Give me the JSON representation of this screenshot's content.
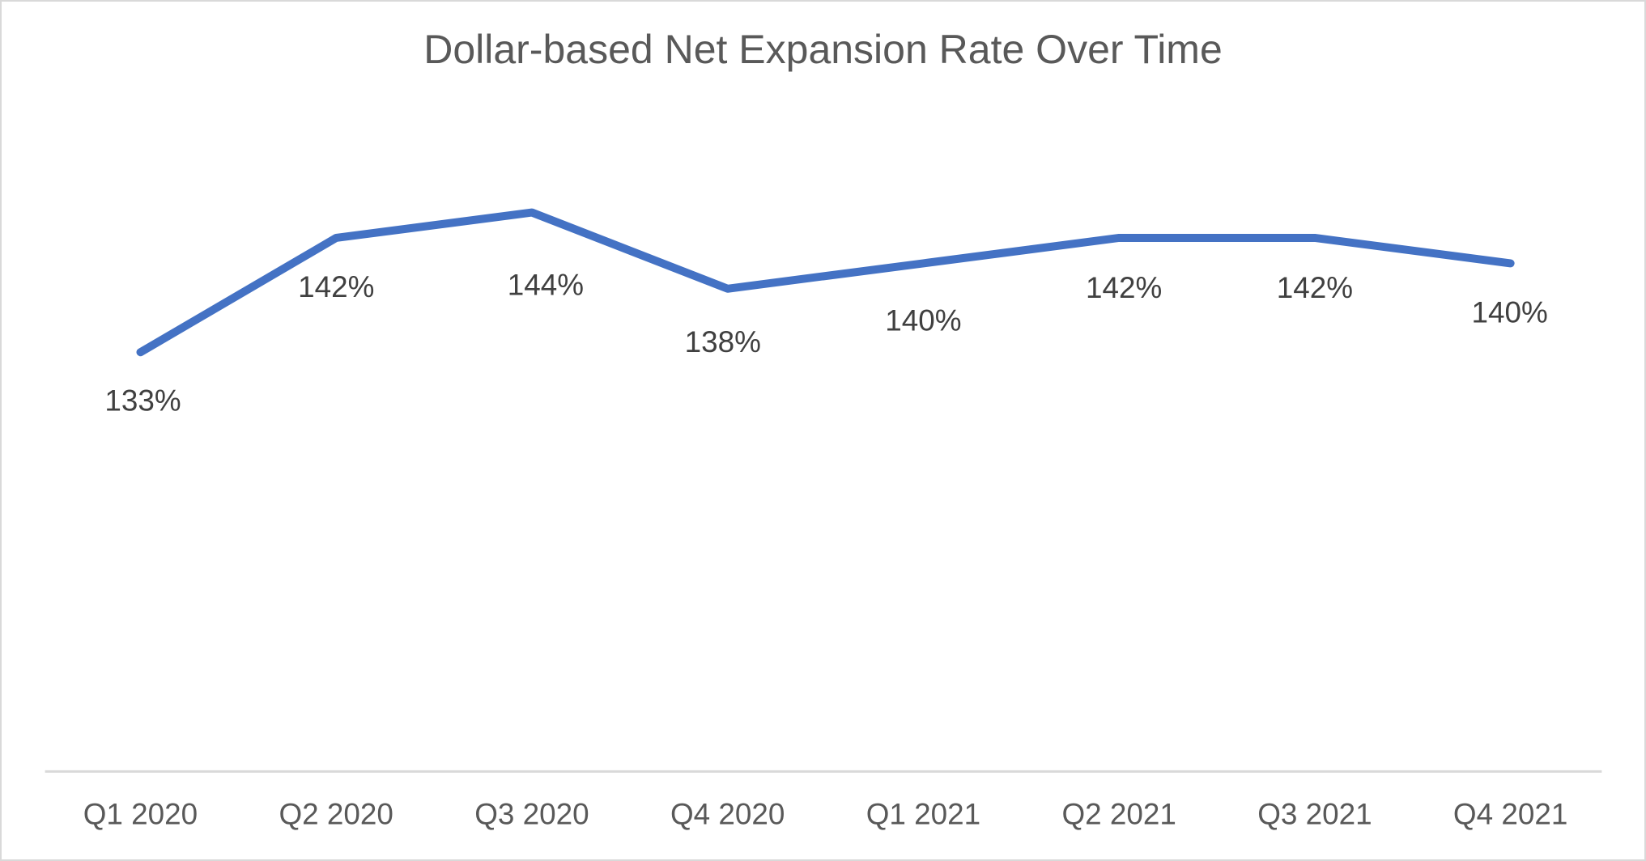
{
  "page": {
    "background": "#ffffff",
    "border_color": "#d9d9d9"
  },
  "chart_data": {
    "type": "line",
    "title": "Dollar-based Net Expansion Rate Over Time",
    "categories": [
      "Q1 2020",
      "Q2 2020",
      "Q3 2020",
      "Q4 2020",
      "Q1 2021",
      "Q2 2021",
      "Q3 2021",
      "Q4 2021"
    ],
    "values": [
      133,
      142,
      144,
      138,
      140,
      142,
      142,
      140
    ],
    "data_labels": [
      "133%",
      "142%",
      "144%",
      "138%",
      "140%",
      "142%",
      "142%",
      "140%"
    ],
    "xlabel": "",
    "ylabel": "",
    "y_axis_visible": false,
    "y_min": 100,
    "grid": false,
    "legend": false,
    "colors": {
      "line": "#4472c4",
      "axis_line": "#d9d9d9",
      "title": "#595959",
      "data_label": "#404040",
      "tick_label": "#595959"
    }
  }
}
